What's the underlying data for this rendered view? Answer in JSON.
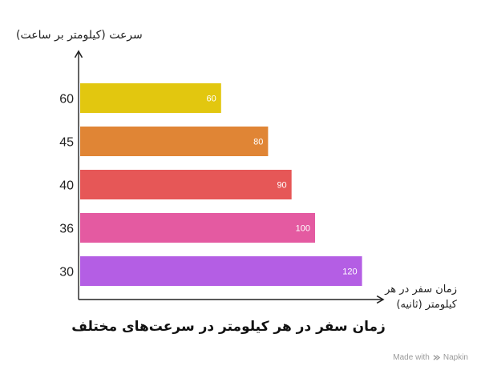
{
  "chart_data": {
    "type": "bar",
    "orientation": "horizontal",
    "title": "زمان سفر در هر کیلومتر در سرعت‌های مختلف",
    "ylabel": "سرعت (کیلومتر بر ساعت)",
    "xlabel": "زمان سفر در هر کیلومتر (ثانیه)",
    "categories": [
      "60",
      "45",
      "40",
      "36",
      "30"
    ],
    "values": [
      60,
      80,
      90,
      100,
      120
    ],
    "colors": [
      "#e2c70f",
      "#e08535",
      "#e65757",
      "#e45aa1",
      "#b45ee4"
    ],
    "xlim": [
      0,
      160
    ],
    "grid": false,
    "legend": "none"
  },
  "credit": {
    "prefix": "Made with",
    "brand": "Napkin"
  }
}
